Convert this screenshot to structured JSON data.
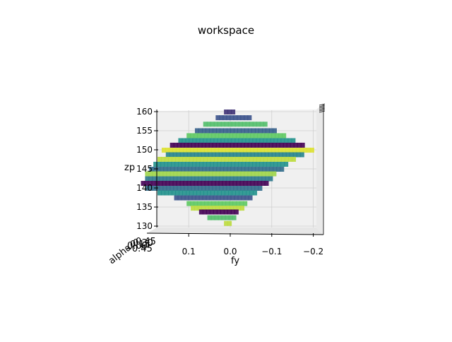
{
  "chart_data": {
    "type": "scatter",
    "title": "workspace",
    "xlabel": "fy",
    "ylabel": "alpha",
    "zlabel": "zp",
    "x_ticks": [
      "0.1",
      "0.0",
      "−0.1",
      "−0.2"
    ],
    "z_ticks": [
      "160",
      "155",
      "150",
      "145",
      "140",
      "135",
      "130"
    ],
    "y_ticks": [
      "−0.45",
      "0.00",
      "0.15",
      "0.30",
      "0.45"
    ],
    "xlim": [
      0.25,
      -0.22
    ],
    "zlim": [
      128,
      161
    ],
    "colormap": "viridis",
    "colors": {
      "pane": "#f0f0f0",
      "grid": "#cfcfcf",
      "viridis": [
        "#440154",
        "#3b528b",
        "#21918c",
        "#5ec962",
        "#fde725"
      ]
    },
    "layers": [
      {
        "z": 160.0,
        "fy_min": -0.01,
        "fy_max": 0.01,
        "c": 0.15
      },
      {
        "z": 158.5,
        "fy_min": -0.05,
        "fy_max": 0.03,
        "c": 0.25
      },
      {
        "z": 156.8,
        "fy_min": -0.09,
        "fy_max": 0.06,
        "c": 0.7
      },
      {
        "z": 155.1,
        "fy_min": -0.11,
        "fy_max": 0.08,
        "c": 0.3
      },
      {
        "z": 153.8,
        "fy_min": -0.13,
        "fy_max": 0.1,
        "c": 0.75
      },
      {
        "z": 152.5,
        "fy_min": -0.16,
        "fy_max": 0.12,
        "c": 0.5
      },
      {
        "z": 151.3,
        "fy_min": -0.18,
        "fy_max": 0.14,
        "c": 0.0
      },
      {
        "z": 150.0,
        "fy_min": -0.2,
        "fy_max": 0.16,
        "c": 0.95
      },
      {
        "z": 148.8,
        "fy_min": -0.18,
        "fy_max": 0.15,
        "c": 0.45
      },
      {
        "z": 147.6,
        "fy_min": -0.16,
        "fy_max": 0.17,
        "c": 0.9
      },
      {
        "z": 146.3,
        "fy_min": -0.14,
        "fy_max": 0.18,
        "c": 0.5
      },
      {
        "z": 145.0,
        "fy_min": -0.13,
        "fy_max": 0.19,
        "c": 0.35
      },
      {
        "z": 143.8,
        "fy_min": -0.11,
        "fy_max": 0.2,
        "c": 0.85
      },
      {
        "z": 142.5,
        "fy_min": -0.1,
        "fy_max": 0.2,
        "c": 0.4
      },
      {
        "z": 141.3,
        "fy_min": -0.09,
        "fy_max": 0.21,
        "c": 0.0
      },
      {
        "z": 140.0,
        "fy_min": -0.08,
        "fy_max": 0.2,
        "c": 0.35
      },
      {
        "z": 138.8,
        "fy_min": -0.06,
        "fy_max": 0.17,
        "c": 0.5
      },
      {
        "z": 137.5,
        "fy_min": -0.05,
        "fy_max": 0.13,
        "c": 0.25
      },
      {
        "z": 136.0,
        "fy_min": -0.04,
        "fy_max": 0.1,
        "c": 0.75
      },
      {
        "z": 134.8,
        "fy_min": -0.03,
        "fy_max": 0.09,
        "c": 0.9
      },
      {
        "z": 133.8,
        "fy_min": -0.02,
        "fy_max": 0.07,
        "c": 0.0
      },
      {
        "z": 132.3,
        "fy_min": -0.01,
        "fy_max": 0.05,
        "c": 0.7
      },
      {
        "z": 130.8,
        "fy_min": -0.005,
        "fy_max": 0.01,
        "c": 0.9
      }
    ],
    "grid": true,
    "legend": "none"
  }
}
